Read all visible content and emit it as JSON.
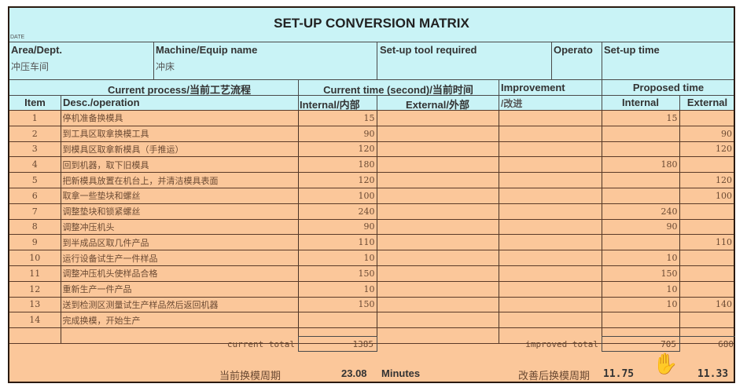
{
  "title": "SET-UP CONVERSION MATRIX",
  "date_label": "DATE",
  "header": {
    "area_label": "Area/Dept.",
    "area_value": "冲压车间",
    "machine_label": "Machine/Equip name",
    "machine_value": "冲床",
    "tool_label": "Set-up tool required",
    "operator_label": "Operato",
    "setup_time_label": "Set-up time"
  },
  "columns": {
    "current_process": "Current process/当前工艺流程",
    "current_time": "Current time (second)/当前时间",
    "improvement": "Improvement",
    "improvement_cn": "/改进",
    "proposed_time": "Proposed time",
    "item": "Item",
    "desc": "Desc./operation",
    "internal": "Internal/内部",
    "external": "External/外部",
    "prop_internal": "Internal",
    "prop_external": "External"
  },
  "rows": [
    {
      "item": "1",
      "desc": "停机准备换模具",
      "internal": "15",
      "external": "",
      "improvement": "",
      "p_int": "15",
      "p_ext": ""
    },
    {
      "item": "2",
      "desc": "到工具区取拿换模工具",
      "internal": "90",
      "external": "",
      "improvement": "",
      "p_int": "",
      "p_ext": "90"
    },
    {
      "item": "3",
      "desc": "到模具区取拿新模具（手推运）",
      "internal": "120",
      "external": "",
      "improvement": "",
      "p_int": "",
      "p_ext": "120"
    },
    {
      "item": "4",
      "desc": "回到机器，取下旧模具",
      "internal": "180",
      "external": "",
      "improvement": "",
      "p_int": "180",
      "p_ext": ""
    },
    {
      "item": "5",
      "desc": "把新模具放置在机台上，并清洁模具表面",
      "internal": "120",
      "external": "",
      "improvement": "",
      "p_int": "",
      "p_ext": "120"
    },
    {
      "item": "6",
      "desc": "取拿一些垫块和螺丝",
      "internal": "100",
      "external": "",
      "improvement": "",
      "p_int": "",
      "p_ext": "100"
    },
    {
      "item": "7",
      "desc": "调整垫块和锁紧螺丝",
      "internal": "240",
      "external": "",
      "improvement": "",
      "p_int": "240",
      "p_ext": ""
    },
    {
      "item": "8",
      "desc": "调整冲压机头",
      "internal": "90",
      "external": "",
      "improvement": "",
      "p_int": "90",
      "p_ext": ""
    },
    {
      "item": "9",
      "desc": "到半成品区取几件产品",
      "internal": "110",
      "external": "",
      "improvement": "",
      "p_int": "",
      "p_ext": "110"
    },
    {
      "item": "10",
      "desc": "运行设备试生产一件样品",
      "internal": "10",
      "external": "",
      "improvement": "",
      "p_int": "10",
      "p_ext": ""
    },
    {
      "item": "11",
      "desc": "调整冲压机头使样品合格",
      "internal": "150",
      "external": "",
      "improvement": "",
      "p_int": "150",
      "p_ext": ""
    },
    {
      "item": "12",
      "desc": "重新生产一件产品",
      "internal": "10",
      "external": "",
      "improvement": "",
      "p_int": "10",
      "p_ext": ""
    },
    {
      "item": "13",
      "desc": "送到检测区测量试生产样品然后返回机器",
      "internal": "150",
      "external": "",
      "improvement": "",
      "p_int": "10",
      "p_ext": "140"
    },
    {
      "item": "14",
      "desc": "完成换模，开始生产",
      "internal": "",
      "external": "",
      "improvement": "",
      "p_int": "",
      "p_ext": ""
    },
    {
      "item": "",
      "desc": "",
      "internal": "",
      "external": "",
      "improvement": "",
      "p_int": "",
      "p_ext": ""
    }
  ],
  "totals": {
    "current_label": "current total",
    "current_value": "1385",
    "improved_label": "improved total",
    "improved_internal": "705",
    "improved_external": "680"
  },
  "summary": {
    "current_label": "当前换模周期",
    "current_value": "23.08",
    "current_unit": "Minutes",
    "improved_label": "改善后换模周期",
    "improved_internal": "11.75",
    "improved_external": "11.33"
  }
}
